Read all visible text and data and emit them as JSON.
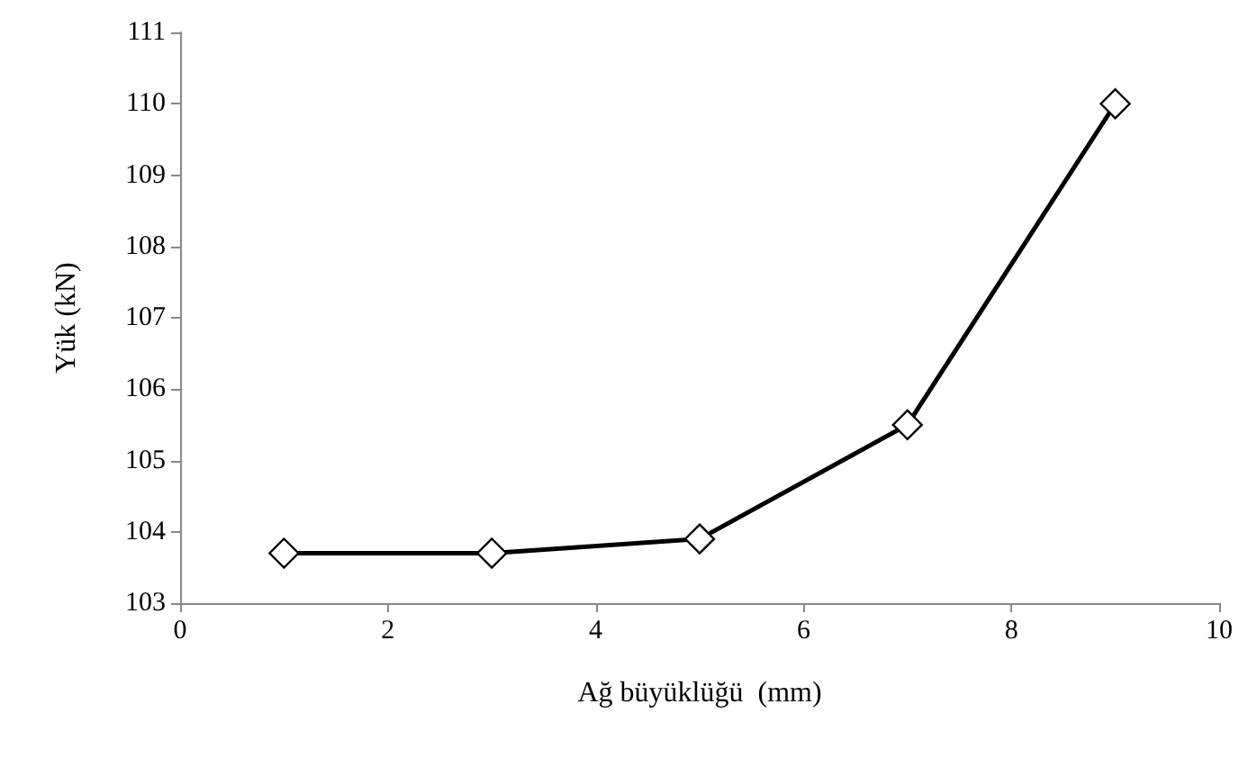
{
  "chart_data": {
    "type": "line",
    "xlabel": "Ağ büyüklüğü  (mm)",
    "ylabel": "Yük (kN)",
    "x": [
      1,
      3,
      5,
      7,
      9
    ],
    "series": [
      {
        "color": "#000000",
        "values": [
          103.7,
          103.7,
          103.9,
          105.5,
          110.0
        ]
      }
    ],
    "xlim": [
      0,
      10
    ],
    "xticks": [
      0,
      2,
      4,
      6,
      8,
      10
    ],
    "ylim": [
      103,
      111
    ],
    "yticks": [
      103,
      104,
      105,
      106,
      107,
      108,
      109,
      110,
      111
    ],
    "grid": false,
    "marker": "diamond",
    "line_style": "solid"
  }
}
